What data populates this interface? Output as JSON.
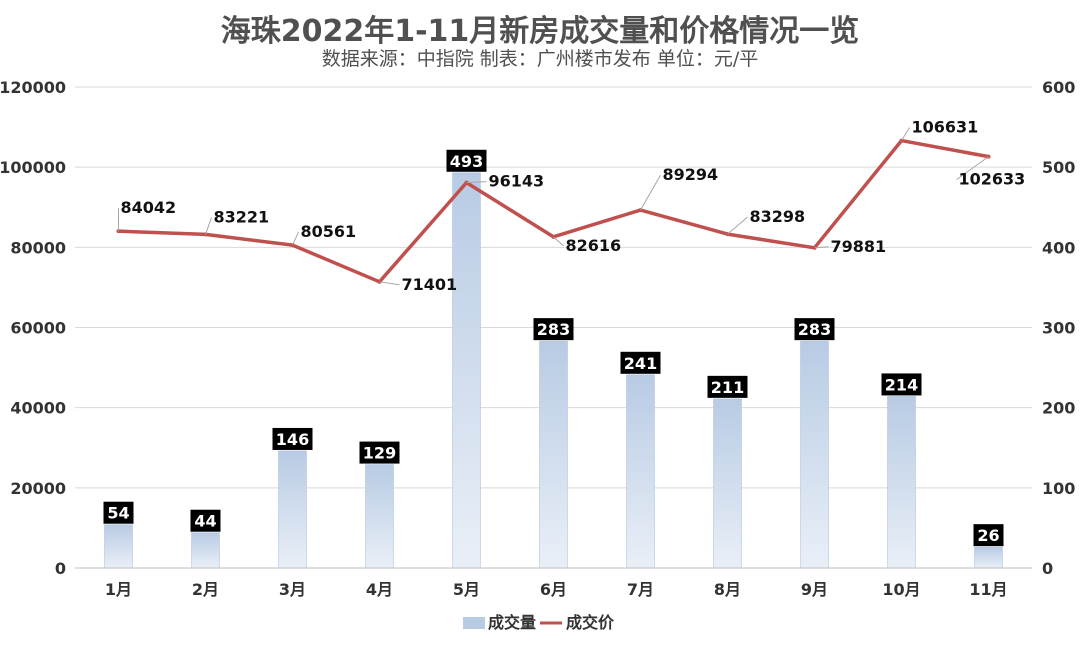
{
  "chart_data": {
    "type": "bar+line",
    "title": "海珠2022年1-11月新房成交量和价格情况一览",
    "subtitle": "数据来源：中指院 制表：广州楼市发布 单位：元/平",
    "categories": [
      "1月",
      "2月",
      "3月",
      "4月",
      "5月",
      "6月",
      "7月",
      "8月",
      "9月",
      "10月",
      "11月"
    ],
    "series": [
      {
        "name": "成交量",
        "type": "bar",
        "axis": "right",
        "values": [
          54,
          44,
          146,
          129,
          493,
          283,
          241,
          211,
          283,
          214,
          26
        ]
      },
      {
        "name": "成交价",
        "type": "line",
        "axis": "left",
        "values": [
          84042,
          83221,
          80561,
          71401,
          96143,
          82616,
          89294,
          83298,
          79881,
          106631,
          102633
        ]
      }
    ],
    "left_axis": {
      "min": 0,
      "max": 120000,
      "ticks": [
        0,
        20000,
        40000,
        60000,
        80000,
        100000,
        120000
      ]
    },
    "right_axis": {
      "min": 0,
      "max": 600,
      "ticks": [
        0,
        100,
        200,
        300,
        400,
        500,
        600
      ]
    },
    "grid": true,
    "legend_position": "bottom",
    "colors": {
      "bar": "#b8cbe4",
      "line": "#c0504d",
      "label_bg": "#000000"
    }
  }
}
